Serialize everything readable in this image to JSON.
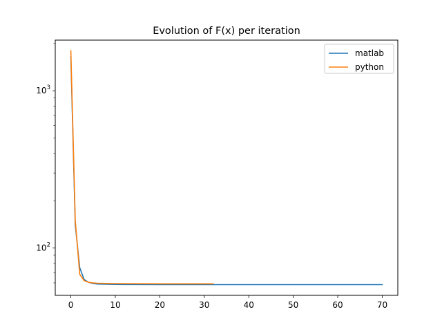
{
  "chart_data": {
    "type": "line",
    "title": "Evolution of F(x) per iteration",
    "xlabel": "",
    "ylabel": "",
    "yscale": "log",
    "xlim": [
      -3.5,
      73.5
    ],
    "ylim": [
      50,
      2100
    ],
    "xticks": [
      0,
      10,
      20,
      30,
      40,
      50,
      60,
      70
    ],
    "yticks_major": [
      {
        "value": 100,
        "label": "10",
        "exp": "2"
      },
      {
        "value": 1000,
        "label": "10",
        "exp": "3"
      }
    ],
    "yticks_minor": [
      60,
      70,
      80,
      90,
      200,
      300,
      400,
      500,
      600,
      700,
      800,
      900,
      2000
    ],
    "grid": false,
    "legend_position": "top-right",
    "series": [
      {
        "name": "matlab",
        "color": "#1f77b4",
        "x": [
          0,
          1,
          2,
          3,
          4,
          5,
          6,
          7,
          8,
          10,
          12,
          15,
          20,
          30,
          40,
          50,
          60,
          70
        ],
        "y": [
          1650,
          140,
          75,
          63,
          60.5,
          59.5,
          59,
          58.9,
          58.8,
          58.7,
          58.6,
          58.6,
          58.5,
          58.5,
          58.5,
          58.5,
          58.5,
          58.5
        ]
      },
      {
        "name": "python",
        "color": "#ff7f0e",
        "x": [
          0,
          1,
          2,
          3,
          4,
          5,
          6,
          8,
          10,
          15,
          20,
          25,
          30,
          32
        ],
        "y": [
          1800,
          150,
          68,
          62,
          60.5,
          60,
          59.7,
          59.5,
          59.4,
          59.3,
          59.2,
          59.2,
          59.2,
          59.2
        ]
      }
    ]
  }
}
